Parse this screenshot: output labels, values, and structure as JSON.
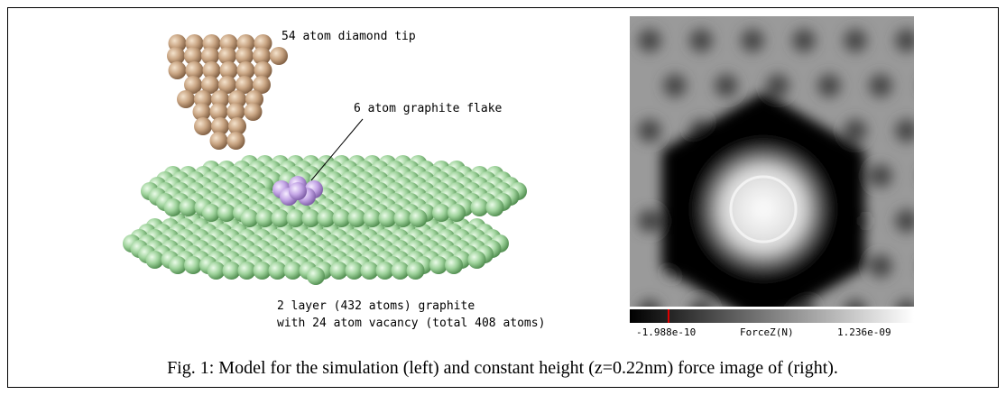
{
  "labels": {
    "tip": "54 atom diamond tip",
    "flake": "6 atom graphite flake",
    "graphite_line1": "2 layer (432 atoms) graphite",
    "graphite_line2": "with 24 atom vacancy (total 408 atoms)"
  },
  "colorbar": {
    "min_label": "-1.988e-10",
    "title": "ForceZ(N)",
    "max_label": "1.236e-09"
  },
  "caption": "Fig. 1: Model for the simulation (left) and constant height (z=0.22nm) force image of (right)."
}
